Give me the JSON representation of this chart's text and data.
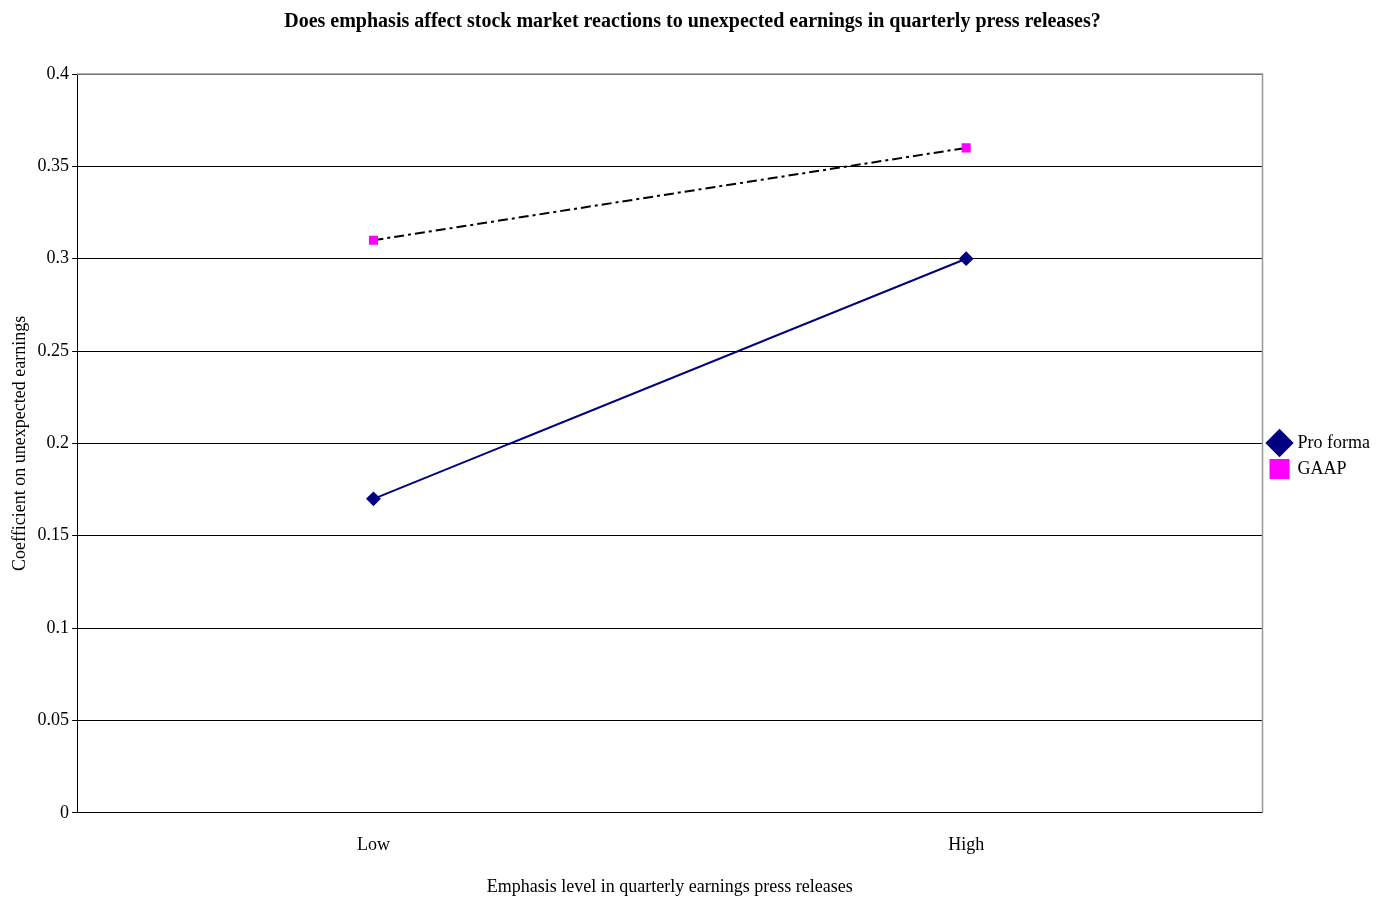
{
  "chart_data": {
    "type": "line",
    "title": "Does emphasis affect stock market reactions to unexpected earnings in quarterly press releases?",
    "xlabel": "Emphasis level in quarterly earnings press releases",
    "ylabel": "Coefficient on unexpected earnings",
    "categories": [
      "Low",
      "High"
    ],
    "series": [
      {
        "name": "Pro forma",
        "color": "#000080",
        "values": [
          0.17,
          0.3
        ],
        "marker": "diamond",
        "line_style": "solid"
      },
      {
        "name": "GAAP",
        "color": "#ff00ff",
        "values": [
          0.31,
          0.36
        ],
        "marker": "square",
        "line_style": "dashed"
      }
    ],
    "ylim": [
      0,
      0.4
    ],
    "yticks": [
      0,
      0.05,
      0.1,
      0.15,
      0.2,
      0.25,
      0.3,
      0.35,
      0.4
    ],
    "grid": "y",
    "legend": "right"
  }
}
